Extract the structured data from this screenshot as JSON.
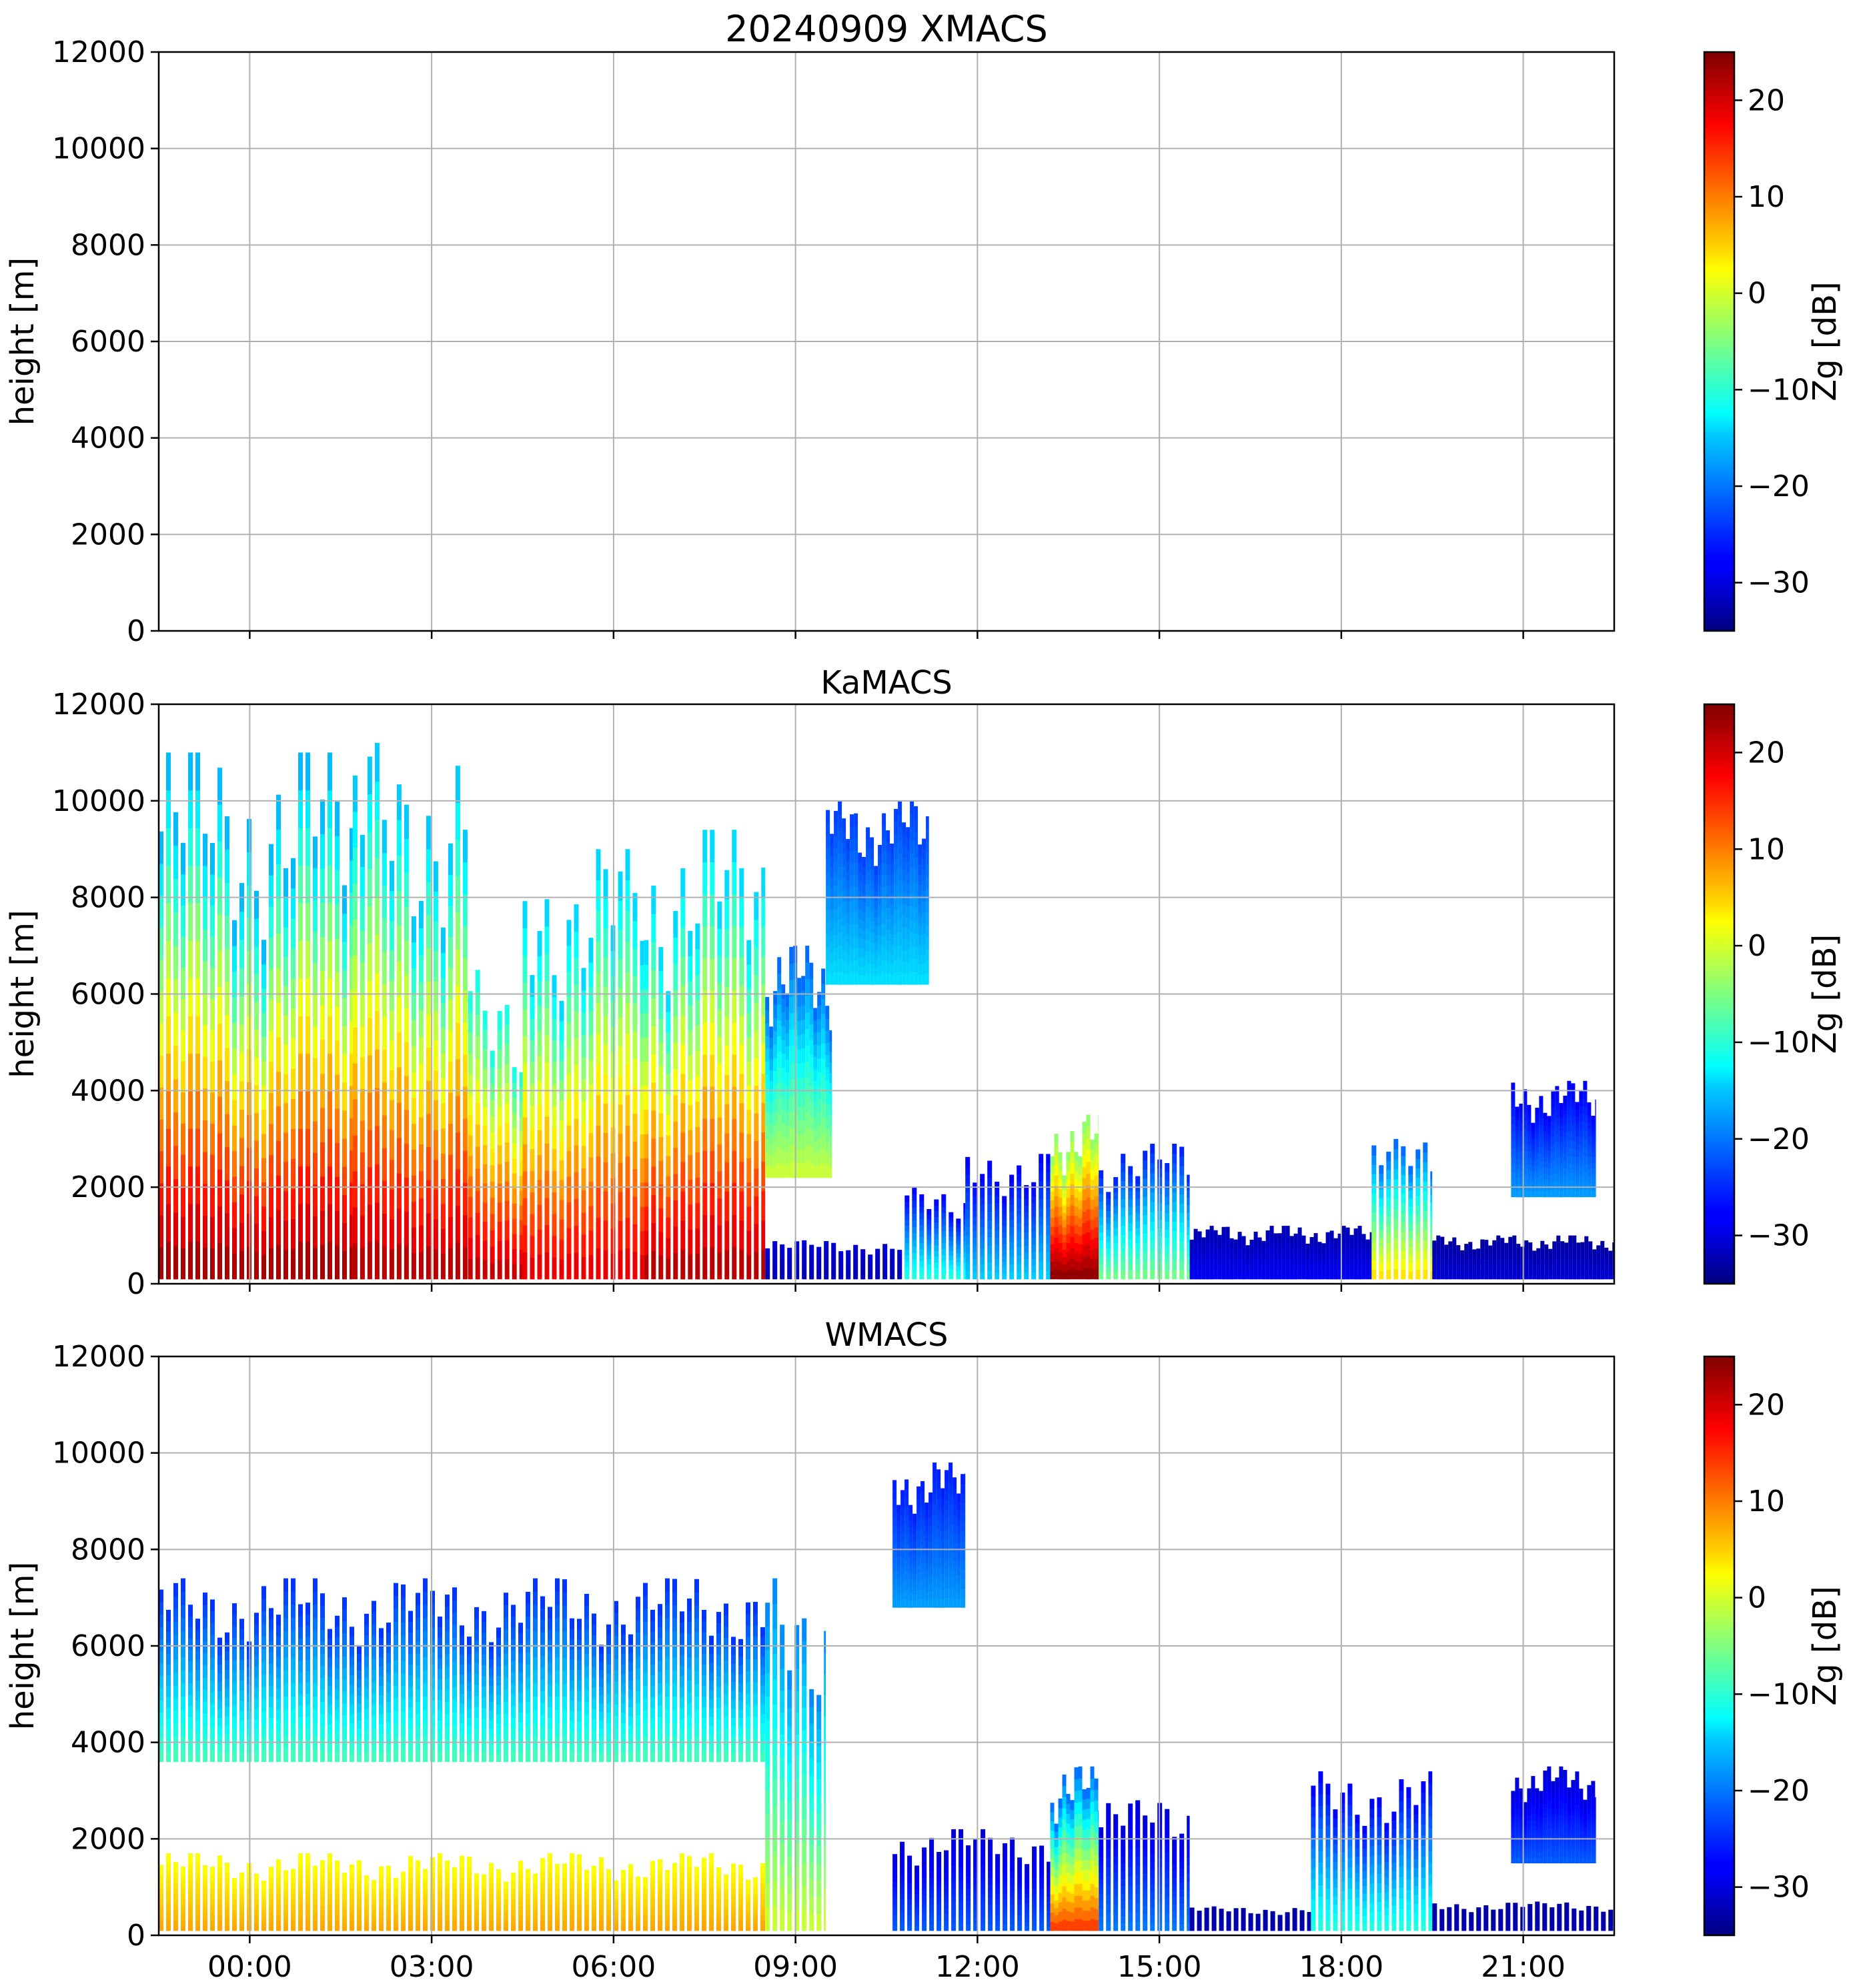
{
  "chart_data": [
    {
      "type": "heatmap",
      "title": "20240909 XMACS",
      "ylabel": "height [m]",
      "ylim": [
        0,
        12000
      ],
      "yticks": [
        "0",
        "2000",
        "4000",
        "6000",
        "8000",
        "10000",
        "12000"
      ],
      "xlim_hours": [
        -1.5,
        22.5
      ],
      "xticks_hours": [
        0,
        3,
        6,
        9,
        12,
        15,
        18,
        21
      ],
      "xtick_labels": [],
      "grid": true,
      "colorbar": {
        "label": "Zg [dB]",
        "range": [
          -35,
          25
        ],
        "ticks": [
          "20",
          "10",
          "0",
          "−10",
          "−20",
          "−30"
        ],
        "tick_values": [
          20,
          10,
          0,
          -10,
          -20,
          -30
        ]
      },
      "features": []
    },
    {
      "type": "heatmap",
      "title": "KaMACS",
      "ylabel": "height [m]",
      "ylim": [
        0,
        12000
      ],
      "yticks": [
        "0",
        "2000",
        "4000",
        "6000",
        "8000",
        "10000",
        "12000"
      ],
      "xlim_hours": [
        -1.5,
        22.5
      ],
      "xticks_hours": [
        0,
        3,
        6,
        9,
        12,
        15,
        18,
        21
      ],
      "xtick_labels": [],
      "grid": true,
      "colorbar": {
        "label": "Zg [dB]",
        "range": [
          -35,
          25
        ],
        "ticks": [
          "20",
          "10",
          "0",
          "−10",
          "−20",
          "−30"
        ],
        "tick_values": [
          20,
          10,
          0,
          -10,
          -20,
          -30
        ]
      },
      "features": [
        {
          "t0": -1.5,
          "t1": 1.7,
          "h0": 100,
          "h1": 11000,
          "zb": 24,
          "zt": -18,
          "striped": true
        },
        {
          "t0": 1.7,
          "t1": 3.6,
          "h0": 100,
          "h1": 11200,
          "zb": 23,
          "zt": -17,
          "striped": true
        },
        {
          "t0": 3.6,
          "t1": 4.5,
          "h0": 100,
          "h1": 6500,
          "zb": 22,
          "zt": -12,
          "striped": true
        },
        {
          "t0": 4.5,
          "t1": 6.5,
          "h0": 100,
          "h1": 9000,
          "zb": 20,
          "zt": -16,
          "striped": true
        },
        {
          "t0": 6.5,
          "t1": 8.5,
          "h0": 100,
          "h1": 9400,
          "zb": 23,
          "zt": -16,
          "striped": true
        },
        {
          "t0": 8.5,
          "t1": 9.6,
          "h0": 2200,
          "h1": 7000,
          "zb": 0,
          "zt": -22,
          "striped": false
        },
        {
          "t0": 8.5,
          "t1": 10.8,
          "h0": 100,
          "h1": 900,
          "zb": -32,
          "zt": -30,
          "striped": true
        },
        {
          "t0": 9.5,
          "t1": 11.2,
          "h0": 6200,
          "h1": 10000,
          "zb": -14,
          "zt": -24,
          "striped": false
        },
        {
          "t0": 10.8,
          "t1": 11.8,
          "h0": 100,
          "h1": 2000,
          "zb": -10,
          "zt": -28,
          "striped": true
        },
        {
          "t0": 11.8,
          "t1": 13.2,
          "h0": 100,
          "h1": 2800,
          "zb": -15,
          "zt": -28,
          "striped": true
        },
        {
          "t0": 13.2,
          "t1": 14.0,
          "h0": 100,
          "h1": 3500,
          "zb": 25,
          "zt": -5,
          "striped": false
        },
        {
          "t0": 14.0,
          "t1": 15.5,
          "h0": 100,
          "h1": 2900,
          "zb": -5,
          "zt": -26,
          "striped": true
        },
        {
          "t0": 15.5,
          "t1": 18.5,
          "h0": 100,
          "h1": 1200,
          "zb": -28,
          "zt": -32,
          "striped": false
        },
        {
          "t0": 18.5,
          "t1": 19.5,
          "h0": 100,
          "h1": 3000,
          "zb": 5,
          "zt": -22,
          "striped": true
        },
        {
          "t0": 19.5,
          "t1": 22.5,
          "h0": 100,
          "h1": 1000,
          "zb": -30,
          "zt": -33,
          "striped": false
        },
        {
          "t0": 20.8,
          "t1": 22.2,
          "h0": 1800,
          "h1": 4200,
          "zb": -18,
          "zt": -28,
          "striped": false
        }
      ]
    },
    {
      "type": "heatmap",
      "title": "WMACS",
      "ylabel": "height [m]",
      "ylim": [
        0,
        12000
      ],
      "yticks": [
        "0",
        "2000",
        "4000",
        "6000",
        "8000",
        "10000",
        "12000"
      ],
      "xlim_hours": [
        -1.5,
        22.5
      ],
      "xticks_hours": [
        0,
        3,
        6,
        9,
        12,
        15,
        18,
        21
      ],
      "xtick_labels": [
        "00:00",
        "03:00",
        "06:00",
        "09:00",
        "12:00",
        "15:00",
        "18:00",
        "21:00"
      ],
      "grid": true,
      "colorbar": {
        "label": "Zg [dB]",
        "range": [
          -35,
          25
        ],
        "ticks": [
          "20",
          "10",
          "0",
          "−10",
          "−20",
          "−30"
        ],
        "tick_values": [
          20,
          10,
          0,
          -10,
          -20,
          -30
        ]
      },
      "features": [
        {
          "t0": -1.5,
          "t1": 8.5,
          "h0": 100,
          "h1": 1700,
          "zb": 8,
          "zt": 2,
          "striped": true
        },
        {
          "t0": -1.5,
          "t1": 8.5,
          "h0": 3600,
          "h1": 7400,
          "zb": -8,
          "zt": -25,
          "striped": true
        },
        {
          "t0": 8.5,
          "t1": 9.5,
          "h0": 100,
          "h1": 7400,
          "zb": 0,
          "zt": -20,
          "striped": true
        },
        {
          "t0": 10.6,
          "t1": 11.8,
          "h0": 6800,
          "h1": 9800,
          "zb": -18,
          "zt": -26,
          "striped": false
        },
        {
          "t0": 10.6,
          "t1": 13.2,
          "h0": 100,
          "h1": 2200,
          "zb": -22,
          "zt": -30,
          "striped": true
        },
        {
          "t0": 13.2,
          "t1": 14.0,
          "h0": 100,
          "h1": 3500,
          "zb": 15,
          "zt": -22,
          "striped": false
        },
        {
          "t0": 14.0,
          "t1": 15.5,
          "h0": 100,
          "h1": 2800,
          "zb": -20,
          "zt": -30,
          "striped": true
        },
        {
          "t0": 15.5,
          "t1": 17.5,
          "h0": 100,
          "h1": 600,
          "zb": -32,
          "zt": -33,
          "striped": true
        },
        {
          "t0": 17.5,
          "t1": 19.5,
          "h0": 100,
          "h1": 3400,
          "zb": -10,
          "zt": -28,
          "striped": true
        },
        {
          "t0": 19.5,
          "t1": 22.5,
          "h0": 100,
          "h1": 700,
          "zb": -32,
          "zt": -33,
          "striped": true
        },
        {
          "t0": 20.8,
          "t1": 22.2,
          "h0": 1500,
          "h1": 3500,
          "zb": -22,
          "zt": -30,
          "striped": false
        }
      ]
    }
  ]
}
